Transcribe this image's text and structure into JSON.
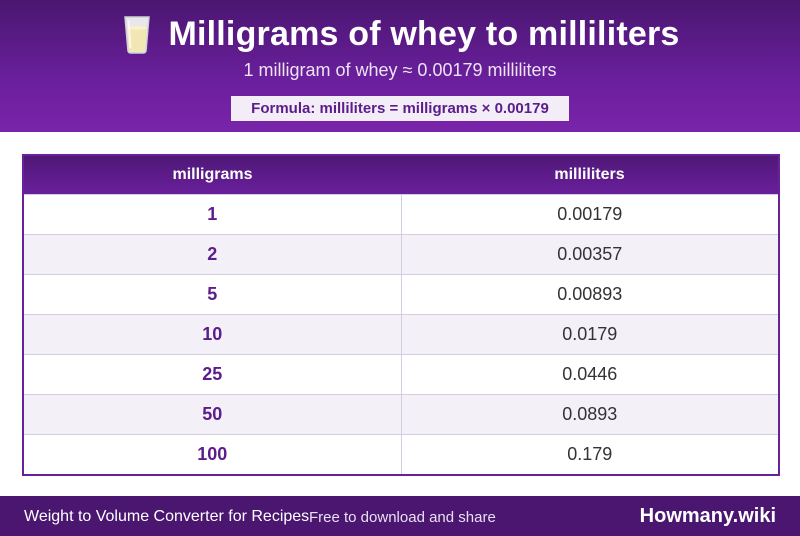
{
  "header": {
    "icon": "milk-glass-icon",
    "title": "Milligrams of whey to milliliters",
    "subtitle": "1 milligram of whey ≈ 0.00179 milliliters",
    "formula": "Formula: milliliters = milligrams × 0.00179"
  },
  "table": {
    "columns": [
      "milligrams",
      "milliliters"
    ],
    "rows": [
      {
        "mg": "1",
        "ml": "0.00179"
      },
      {
        "mg": "2",
        "ml": "0.00357"
      },
      {
        "mg": "5",
        "ml": "0.00893"
      },
      {
        "mg": "10",
        "ml": "0.0179"
      },
      {
        "mg": "25",
        "ml": "0.0446"
      },
      {
        "mg": "50",
        "ml": "0.0893"
      },
      {
        "mg": "100",
        "ml": "0.179"
      }
    ]
  },
  "footer": {
    "left_text": "Weight to Volume Converter for Recipes",
    "mid_text": "Free to download and share",
    "brand": "Howmany.wiki"
  },
  "colors": {
    "brand_purple": "#6a1f9c",
    "dark_purple": "#4a1670",
    "row_alt": "#f4f0f8"
  }
}
